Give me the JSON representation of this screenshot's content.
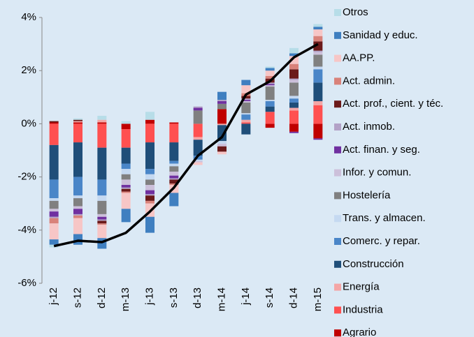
{
  "chart_data": {
    "type": "bar",
    "stacked": true,
    "categories": [
      "j-12",
      "s-12",
      "d-12",
      "m-13",
      "j-13",
      "s-13",
      "d-13",
      "m-14",
      "j-14",
      "s-14",
      "d-14",
      "m-15"
    ],
    "series": [
      {
        "name": "Agrario",
        "color": "#c00000",
        "values": [
          0.05,
          0.05,
          0.05,
          -0.2,
          0.15,
          0.05,
          0,
          0.55,
          0,
          -0.15,
          -0.3,
          -0.55
        ]
      },
      {
        "name": "Industria",
        "color": "#ff5050",
        "values": [
          -0.8,
          -0.7,
          -0.9,
          -0.7,
          -0.7,
          -0.7,
          -0.5,
          0,
          0.05,
          0.45,
          0.5,
          0.7
        ]
      },
      {
        "name": "Energía",
        "color": "#f4a6a6",
        "values": [
          0,
          0.05,
          0.1,
          0,
          0,
          0,
          -0.1,
          -0.05,
          0.1,
          0,
          0.1,
          0.15
        ]
      },
      {
        "name": "Construcción",
        "color": "#1f4e79",
        "values": [
          -1.3,
          -1.3,
          -1.2,
          -0.6,
          -1.0,
          -0.7,
          -0.6,
          -0.6,
          -0.4,
          0.2,
          0.2,
          0.7
        ]
      },
      {
        "name": "Comerc. y repar.",
        "color": "#4a86c8",
        "values": [
          -0.7,
          -0.7,
          -0.6,
          -0.2,
          -0.2,
          -0.1,
          -0.15,
          0,
          0.2,
          0.2,
          0.15,
          0.5
        ]
      },
      {
        "name": "Trans. y almacen.",
        "color": "#c5d9f1",
        "values": [
          -0.1,
          -0.1,
          -0.2,
          -0.2,
          -0.2,
          -0.1,
          -0.05,
          -0.1,
          0.05,
          0.05,
          0.1,
          0.1
        ]
      },
      {
        "name": "Hostelería",
        "color": "#808080",
        "values": [
          -0.3,
          -0.3,
          -0.5,
          -0.2,
          -0.2,
          -0.2,
          0.5,
          0.2,
          0.4,
          0.5,
          0.5,
          0.45
        ]
      },
      {
        "name": "Infor. y comun.",
        "color": "#ccc0da",
        "values": [
          -0.1,
          -0.1,
          -0.1,
          -0.2,
          -0.2,
          -0.15,
          -0.05,
          -0.1,
          0.05,
          0.05,
          0.1,
          0.1
        ]
      },
      {
        "name": "Act. finan. y seg.",
        "color": "#7030a0",
        "values": [
          -0.2,
          -0.2,
          -0.1,
          -0.1,
          -0.15,
          -0.1,
          0.1,
          0.1,
          0.05,
          0.05,
          -0.05,
          -0.05
        ]
      },
      {
        "name": "Act. inmob.",
        "color": "#b3a2c7",
        "values": [
          -0.05,
          -0.05,
          -0.05,
          -0.05,
          -0.05,
          -0.05,
          0.05,
          0.05,
          0.05,
          0.05,
          0.05,
          0.05
        ]
      },
      {
        "name": "Act. prof., cient. y téc.",
        "color": "#6b1a1a",
        "values": [
          0.05,
          0.05,
          -0.1,
          -0.1,
          -0.2,
          -0.15,
          0,
          -0.2,
          0.1,
          0.15,
          0.35,
          0.35
        ]
      },
      {
        "name": "Act. admin.",
        "color": "#d9827a",
        "values": [
          -0.2,
          -0.1,
          -0.05,
          -0.05,
          -0.1,
          -0.05,
          0,
          0,
          0.1,
          0.1,
          0.2,
          0.2
        ]
      },
      {
        "name": "AA.PP.",
        "color": "#f7c6c6",
        "values": [
          -0.6,
          -0.6,
          -0.5,
          -0.6,
          -0.5,
          -0.3,
          -0.1,
          -0.1,
          0.3,
          0.2,
          0.3,
          0.25
        ]
      },
      {
        "name": "Sanidad y educ.",
        "color": "#3f7fc0",
        "values": [
          -0.2,
          -0.4,
          -0.4,
          -0.5,
          -0.6,
          -0.5,
          0,
          0.3,
          0.2,
          0.1,
          0.1,
          0.1
        ]
      },
      {
        "name": "Otros",
        "color": "#b7dde8",
        "values": [
          -0.1,
          0.05,
          0.15,
          0.1,
          0.3,
          0,
          0,
          0,
          0,
          0.05,
          0.2,
          0.1
        ]
      }
    ],
    "line": {
      "color": "#000000",
      "values": [
        -4.6,
        -4.4,
        -4.45,
        -4.1,
        -3.3,
        -2.4,
        -1.2,
        -0.5,
        1.1,
        1.6,
        2.5,
        3.0
      ]
    },
    "ylim": [
      -6,
      4
    ],
    "yticks": [
      {
        "value": -6,
        "label": "-6%"
      },
      {
        "value": -4,
        "label": "-4%"
      },
      {
        "value": -2,
        "label": "-2%"
      },
      {
        "value": 0,
        "label": "0%"
      },
      {
        "value": 2,
        "label": "2%"
      },
      {
        "value": 4,
        "label": "4%"
      }
    ]
  }
}
